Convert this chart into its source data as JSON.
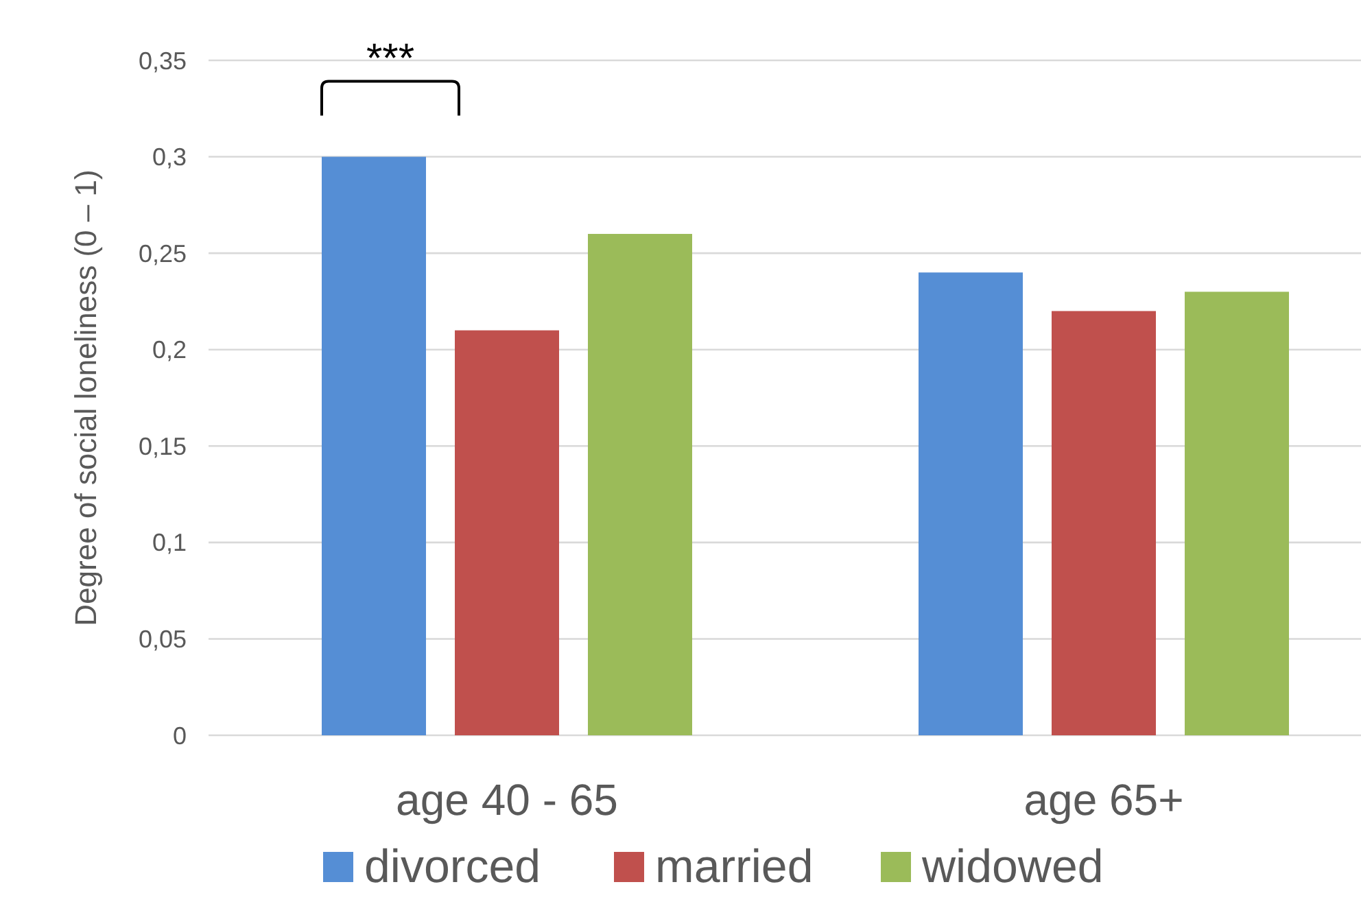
{
  "chart_data": {
    "type": "bar",
    "ylabel": "Degree of social loneliness (0 – 1)",
    "categories": [
      "age 40 - 65",
      "age 65+"
    ],
    "series": [
      {
        "name": "divorced",
        "color": "#558ed5",
        "values": [
          0.3,
          0.24
        ]
      },
      {
        "name": "married",
        "color": "#c0504d",
        "values": [
          0.21,
          0.22
        ]
      },
      {
        "name": "widowed",
        "color": "#9bbb59",
        "values": [
          0.26,
          0.23
        ]
      }
    ],
    "ylim": [
      0,
      0.35
    ],
    "yticks": [
      0,
      {
        "value": 0.05,
        "label": "0,05"
      },
      {
        "value": 0.1,
        "label": "0,1"
      },
      {
        "value": 0.15,
        "label": "0,15"
      },
      {
        "value": 0.2,
        "label": "0,2"
      },
      {
        "value": 0.25,
        "label": "0,25"
      },
      {
        "value": 0.3,
        "label": "0,3"
      },
      {
        "value": 0.35,
        "label": "0,35"
      }
    ],
    "grid": "y",
    "legend": "bottom",
    "annotations": [
      "***"
    ]
  }
}
